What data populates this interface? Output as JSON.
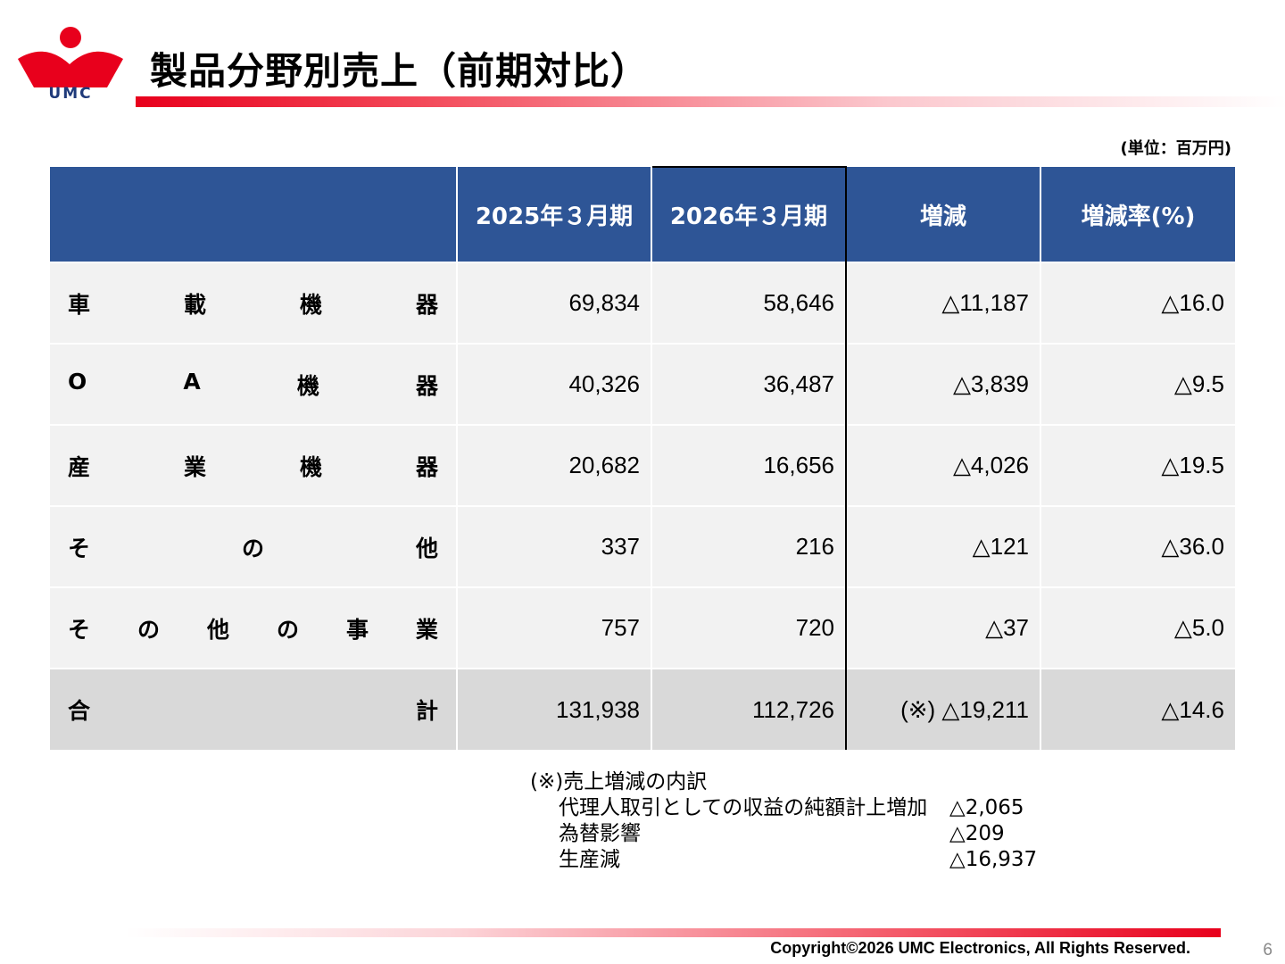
{
  "header": {
    "logo_text": "UMC",
    "title": "製品分野別売上（前期対比）"
  },
  "unit_label": "(単位：百万円)",
  "table": {
    "columns": [
      "",
      "2025年３月期",
      "2026年３月期",
      "増減",
      "増減率(%)"
    ],
    "rows": [
      {
        "label_chars": [
          "車",
          "載",
          "機",
          "器"
        ],
        "fy2025": "69,834",
        "fy2026": "58,646",
        "change": "△11,187",
        "rate": "△16.0"
      },
      {
        "label_chars": [
          "O",
          "A",
          "機",
          "器"
        ],
        "fy2025": "40,326",
        "fy2026": "36,487",
        "change": "△3,839",
        "rate": "△9.5"
      },
      {
        "label_chars": [
          "産",
          "業",
          "機",
          "器"
        ],
        "fy2025": "20,682",
        "fy2026": "16,656",
        "change": "△4,026",
        "rate": "△19.5"
      },
      {
        "label_chars": [
          "そ",
          "の",
          "他"
        ],
        "fy2025": "337",
        "fy2026": "216",
        "change": "△121",
        "rate": "△36.0"
      },
      {
        "label_chars": [
          "そ",
          "の",
          "他",
          "の",
          "事",
          "業"
        ],
        "fy2025": "757",
        "fy2026": "720",
        "change": "△37",
        "rate": "△5.0"
      },
      {
        "label_chars": [
          "合",
          "計"
        ],
        "fy2025": "131,938",
        "fy2026": "112,726",
        "change": "(※) △19,211",
        "rate": "△14.6"
      }
    ]
  },
  "note": {
    "title": "(※)売上増減の内訳",
    "items": [
      {
        "name": "代理人取引としての収益の純額計上増加",
        "value": "△2,065"
      },
      {
        "name": "為替影響",
        "value": "△209"
      },
      {
        "name": "生産減",
        "value": "△16,937"
      }
    ]
  },
  "footer": {
    "copyright": "Copyright©2026 UMC Electronics, All Rights Reserved.",
    "page_number": "6"
  },
  "colors": {
    "brand_red": "#e8001c",
    "header_blue": "#2e5596",
    "row_bg": "#f2f2f2",
    "total_bg": "#d9d9d9"
  }
}
